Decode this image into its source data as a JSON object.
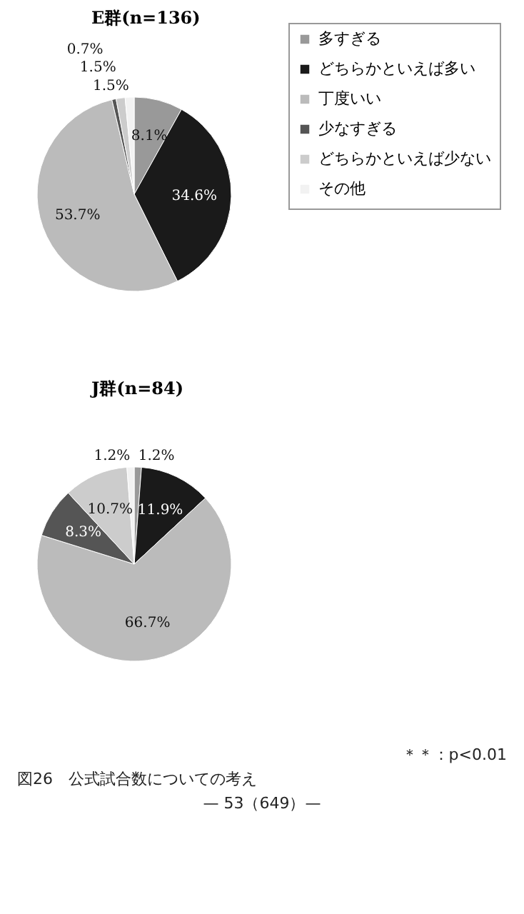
{
  "chart_data": [
    {
      "type": "pie",
      "title": "E群(n=136)",
      "categories": [
        "多すぎる",
        "どちらかといえば多い",
        "丁度いい",
        "少なすぎる",
        "どちらかといえば少ない",
        "その他"
      ],
      "values": [
        8.1,
        34.6,
        53.7,
        0.7,
        1.5,
        1.5
      ],
      "value_labels": [
        "8.1%",
        "34.6%",
        "53.7%",
        "0.7%",
        "1.5%",
        "1.5%"
      ],
      "colors": [
        "#999999",
        "#1a1a1a",
        "#bbbbbb",
        "#555555",
        "#cccccc",
        "#f2f2f2"
      ],
      "legend": "right"
    },
    {
      "type": "pie",
      "title": "J群(n=84)",
      "categories": [
        null,
        null,
        null,
        null,
        null,
        null
      ],
      "values": [
        1.2,
        11.9,
        66.7,
        8.3,
        10.7,
        1.2
      ],
      "value_labels": [
        "1.2%",
        "11.9%",
        "66.7%",
        "8.3%",
        "10.7%",
        "1.2%"
      ],
      "colors": [
        "#999999",
        "#1a1a1a",
        "#bbbbbb",
        "#555555",
        "#cccccc",
        "#f2f2f2"
      ],
      "annotations": [
        "＊＊：p<0.01",
        "図26　公式試合数についての考え",
        "— 53（649）—"
      ]
    }
  ]
}
